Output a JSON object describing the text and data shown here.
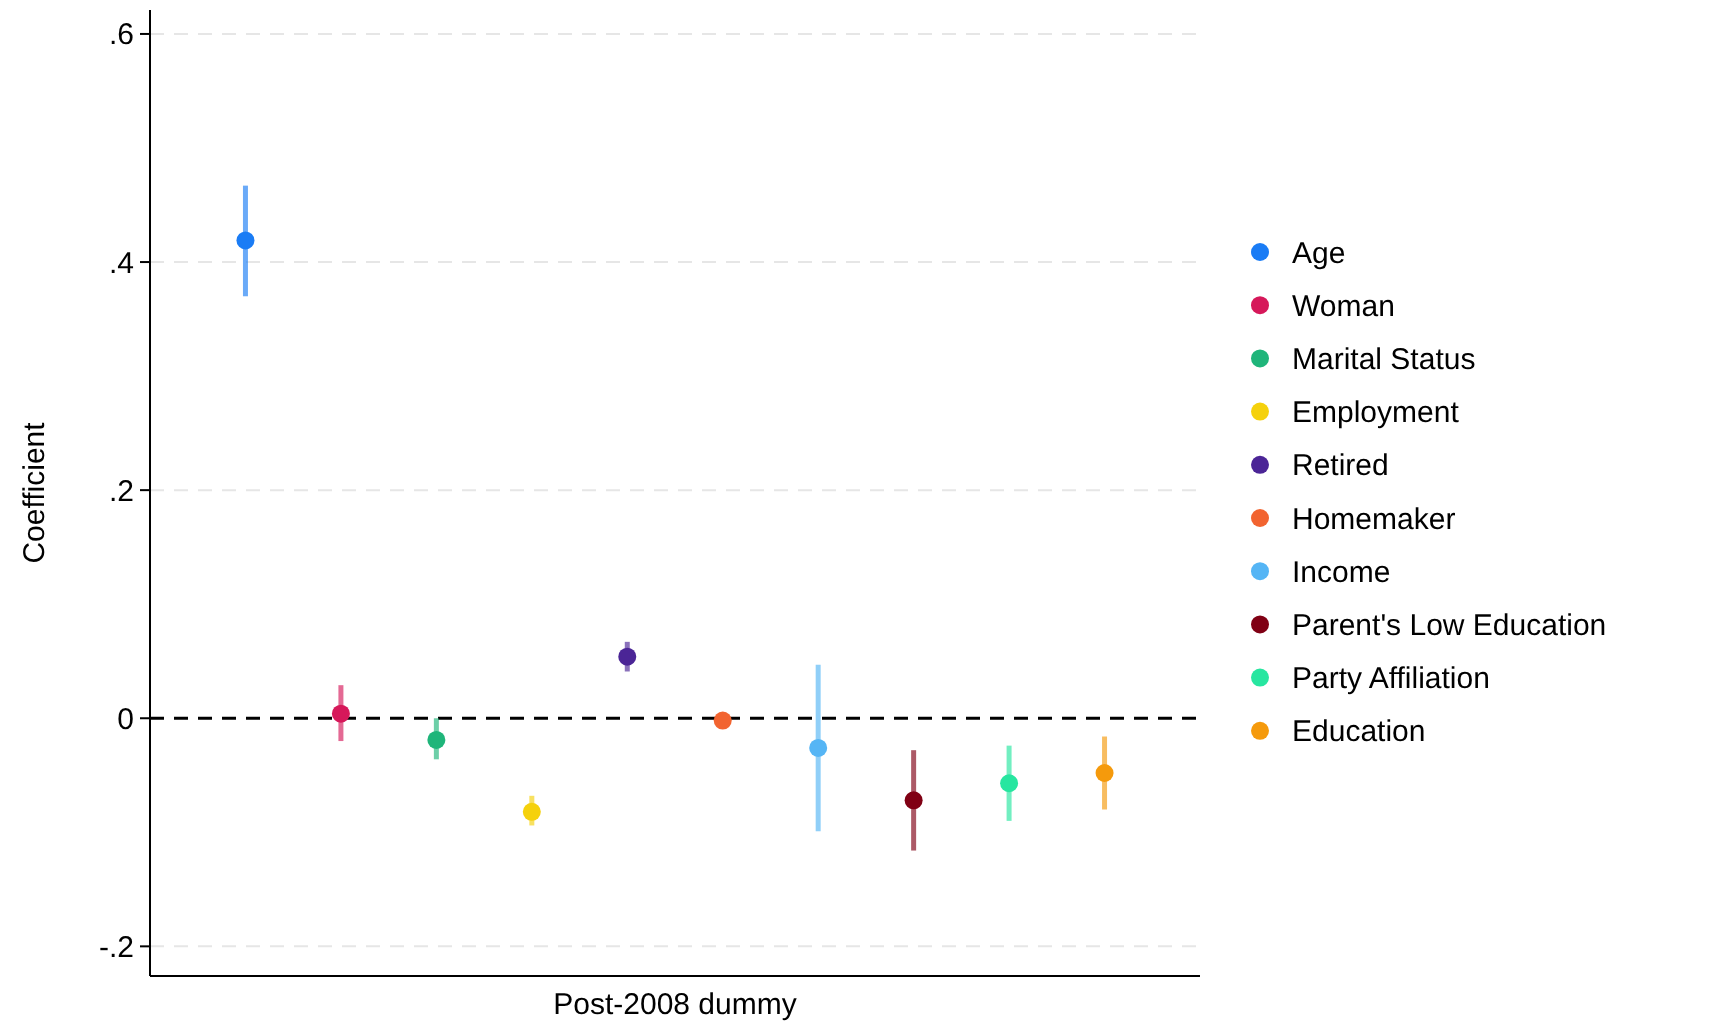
{
  "chart_data": {
    "type": "scatter",
    "xlabel": "Post-2008 dummy",
    "ylabel": "Coefficient",
    "categories": [
      null,
      null,
      null,
      null,
      null,
      null,
      null,
      null,
      null,
      null
    ],
    "ylim": [
      -0.226,
      0.621
    ],
    "yticks": [
      {
        "value": -0.2,
        "label": "-.2"
      },
      0,
      {
        "value": 0.2,
        "label": ".2"
      },
      {
        "value": 0.4,
        "label": ".4"
      },
      {
        "value": 0.6,
        "label": ".6"
      }
    ],
    "grid": "y",
    "legend": "right",
    "marker": "circle",
    "ref_lines": [
      {
        "axis": "y",
        "value": 0,
        "color": "#000000",
        "line_style": "dashed"
      }
    ],
    "series": [
      {
        "name": "Age",
        "color": "#1a7cf5",
        "values": [
          0.419,
          null,
          null,
          null,
          null,
          null,
          null,
          null,
          null,
          null
        ],
        "errors": [
          [
            0.37,
            0.467
          ],
          null,
          null,
          null,
          null,
          null,
          null,
          null,
          null,
          null
        ]
      },
      {
        "name": "Woman",
        "color": "#d6185a",
        "values": [
          null,
          0.004,
          null,
          null,
          null,
          null,
          null,
          null,
          null,
          null
        ],
        "errors": [
          null,
          [
            -0.02,
            0.029
          ],
          null,
          null,
          null,
          null,
          null,
          null,
          null,
          null
        ]
      },
      {
        "name": "Marital Status",
        "color": "#1fb57a",
        "values": [
          null,
          null,
          -0.019,
          null,
          null,
          null,
          null,
          null,
          null,
          null
        ],
        "errors": [
          null,
          null,
          [
            -0.036,
            0.0
          ],
          null,
          null,
          null,
          null,
          null,
          null,
          null
        ]
      },
      {
        "name": "Employment",
        "color": "#f5d10c",
        "values": [
          null,
          null,
          null,
          -0.082,
          null,
          null,
          null,
          null,
          null,
          null
        ],
        "errors": [
          null,
          null,
          null,
          [
            -0.094,
            -0.068
          ],
          null,
          null,
          null,
          null,
          null,
          null
        ]
      },
      {
        "name": "Retired",
        "color": "#4b2596",
        "values": [
          null,
          null,
          null,
          null,
          0.054,
          null,
          null,
          null,
          null,
          null
        ],
        "errors": [
          null,
          null,
          null,
          null,
          [
            0.041,
            0.067
          ],
          null,
          null,
          null,
          null,
          null
        ]
      },
      {
        "name": "Homemaker",
        "color": "#f26430",
        "values": [
          null,
          null,
          null,
          null,
          null,
          -0.002,
          null,
          null,
          null,
          null
        ],
        "errors": [
          null,
          null,
          null,
          null,
          null,
          [
            -0.006,
            0.002
          ],
          null,
          null,
          null,
          null
        ]
      },
      {
        "name": "Income",
        "color": "#55b5f5",
        "values": [
          null,
          null,
          null,
          null,
          null,
          null,
          -0.026,
          null,
          null,
          null
        ],
        "errors": [
          null,
          null,
          null,
          null,
          null,
          null,
          [
            -0.099,
            0.047
          ],
          null,
          null,
          null
        ]
      },
      {
        "name": "Parent's Low Education",
        "color": "#800014",
        "values": [
          null,
          null,
          null,
          null,
          null,
          null,
          null,
          -0.072,
          null,
          null
        ],
        "errors": [
          null,
          null,
          null,
          null,
          null,
          null,
          null,
          [
            -0.116,
            -0.028
          ],
          null,
          null
        ]
      },
      {
        "name": "Party Affiliation",
        "color": "#27e6a0",
        "values": [
          null,
          null,
          null,
          null,
          null,
          null,
          null,
          null,
          -0.057,
          null
        ],
        "errors": [
          null,
          null,
          null,
          null,
          null,
          null,
          null,
          null,
          [
            -0.09,
            -0.024
          ],
          null
        ]
      },
      {
        "name": "Education",
        "color": "#f59a0c",
        "values": [
          null,
          null,
          null,
          null,
          null,
          null,
          null,
          null,
          null,
          -0.048
        ],
        "errors": [
          null,
          null,
          null,
          null,
          null,
          null,
          null,
          null,
          null,
          [
            -0.08,
            -0.016
          ]
        ]
      }
    ]
  }
}
